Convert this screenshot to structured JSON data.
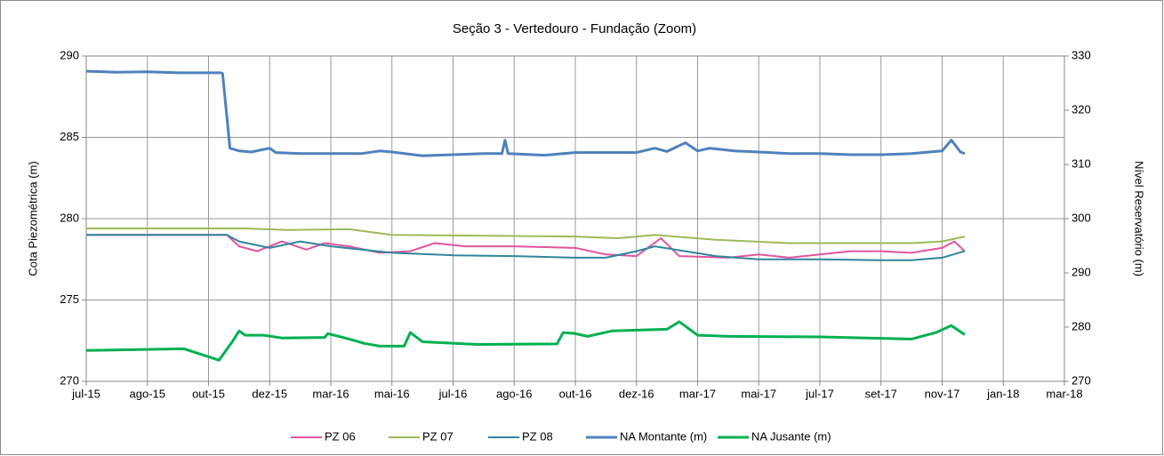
{
  "chart_data": {
    "type": "line",
    "title": "Seção 3 - Vertedouro - Fundação (Zoom)",
    "y_label": "Cota Piezométrica (m)",
    "y2_label": "Nível Reservatório (m)",
    "xlim": [
      0,
      16
    ],
    "xticks": [
      {
        "value": 0,
        "label": "jul-15"
      },
      {
        "value": 1,
        "label": "ago-15"
      },
      {
        "value": 2,
        "label": "out-15"
      },
      {
        "value": 3,
        "label": "dez-15"
      },
      {
        "value": 4,
        "label": "mar-16"
      },
      {
        "value": 5,
        "label": "mai-16"
      },
      {
        "value": 6,
        "label": "jul-16"
      },
      {
        "value": 7,
        "label": "ago-16"
      },
      {
        "value": 8,
        "label": "out-16"
      },
      {
        "value": 9,
        "label": "dez-16"
      },
      {
        "value": 10,
        "label": "mar-17"
      },
      {
        "value": 11,
        "label": "mai-17"
      },
      {
        "value": 12,
        "label": "jul-17"
      },
      {
        "value": 13,
        "label": "set-17"
      },
      {
        "value": 14,
        "label": "nov-17"
      },
      {
        "value": 15,
        "label": "jan-18"
      },
      {
        "value": 16,
        "label": "mar-18"
      }
    ],
    "ylim": [
      270,
      290
    ],
    "yticks": [
      270,
      275,
      280,
      285,
      290
    ],
    "y2lim": [
      270,
      330
    ],
    "y2ticks": [
      270,
      280,
      290,
      300,
      310,
      320,
      330
    ],
    "grid": true,
    "legend": "bottom",
    "series": [
      {
        "name": "PZ 06",
        "color": "#e0559f",
        "x": [
          0,
          2.3,
          2.5,
          2.8,
          3.2,
          3.6,
          3.9,
          4.3,
          4.8,
          5.3,
          5.7,
          6.2,
          7,
          8,
          8.5,
          9,
          9.4,
          9.7,
          10.5,
          11,
          11.5,
          12,
          12.5,
          13,
          13.5,
          14,
          14.2,
          14.37
        ],
        "values": [
          279.0,
          279.0,
          278.3,
          278.0,
          278.6,
          278.1,
          278.5,
          278.3,
          277.9,
          278.0,
          278.5,
          278.3,
          278.3,
          278.2,
          277.8,
          277.7,
          278.8,
          277.7,
          277.6,
          277.8,
          277.6,
          277.8,
          278.0,
          278.0,
          277.9,
          278.2,
          278.6,
          278.0
        ]
      },
      {
        "name": "PZ 07",
        "color": "#9bbb59",
        "x": [
          0,
          2.6,
          3.3,
          4.3,
          5,
          8,
          8.7,
          9.3,
          10.3,
          11.5,
          13.5,
          14,
          14.37
        ],
        "values": [
          279.4,
          279.4,
          279.3,
          279.35,
          279.0,
          278.9,
          278.8,
          279.0,
          278.7,
          278.5,
          278.5,
          278.6,
          278.9
        ]
      },
      {
        "name": "PZ 08",
        "color": "#31859c",
        "x": [
          0,
          2.3,
          2.5,
          3,
          3.5,
          4,
          4.5,
          5,
          6,
          7,
          8,
          8.5,
          9,
          9.3,
          9.8,
          10.3,
          11,
          12,
          13,
          13.5,
          14,
          14.37
        ],
        "values": [
          279.0,
          279.0,
          278.6,
          278.2,
          278.6,
          278.3,
          278.1,
          277.9,
          277.75,
          277.7,
          277.6,
          277.6,
          278.0,
          278.3,
          278.0,
          277.7,
          277.5,
          277.5,
          277.45,
          277.45,
          277.6,
          278.0
        ]
      },
      {
        "name": "NA Montante (m)",
        "color": "#4f81bd",
        "axis": "y2",
        "x": [
          0,
          0.5,
          1,
          1.5,
          2.2,
          2.23,
          2.35,
          2.5,
          2.7,
          3.0,
          3.1,
          3.5,
          4.5,
          4.8,
          5.0,
          5.5,
          6,
          6.5,
          6.8,
          6.85,
          6.9,
          7.5,
          8,
          8.5,
          9,
          9.3,
          9.5,
          9.8,
          10,
          10.2,
          10.6,
          11,
          11.5,
          12,
          12.5,
          13,
          13.5,
          14.0,
          14.15,
          14.3,
          14.37
        ],
        "values": [
          327.2,
          327,
          327.1,
          326.9,
          326.9,
          326.8,
          313,
          312.5,
          312.3,
          313,
          312.2,
          312,
          312,
          312.5,
          312.3,
          311.6,
          311.8,
          312,
          312,
          314.5,
          312,
          311.7,
          312.2,
          312.2,
          312.2,
          313,
          312.4,
          314,
          312.5,
          313,
          312.5,
          312.3,
          312,
          312,
          311.8,
          311.8,
          312,
          312.5,
          314.5,
          312.3,
          312
        ]
      },
      {
        "name": "NA Jusante (m)",
        "color": "#00b050",
        "axis": "y2",
        "x": [
          0,
          1.6,
          2.17,
          2.4,
          2.5,
          2.6,
          2.9,
          3.2,
          3.9,
          3.95,
          4.3,
          4.55,
          4.8,
          5.2,
          5.3,
          5.5,
          6.4,
          7.7,
          7.8,
          8.0,
          8.2,
          8.6,
          9.5,
          9.7,
          10,
          10.5,
          12,
          13.5,
          13.9,
          14.15,
          14.37
        ],
        "values": [
          275.7,
          276,
          273.9,
          277.5,
          279.3,
          278.5,
          278.5,
          278,
          278.1,
          278.8,
          277.8,
          277,
          276.5,
          276.5,
          279,
          277.3,
          276.8,
          276.9,
          279,
          278.8,
          278.3,
          279.3,
          279.6,
          281,
          278.5,
          278.3,
          278.2,
          277.8,
          279,
          280.3,
          278.6
        ]
      }
    ]
  }
}
